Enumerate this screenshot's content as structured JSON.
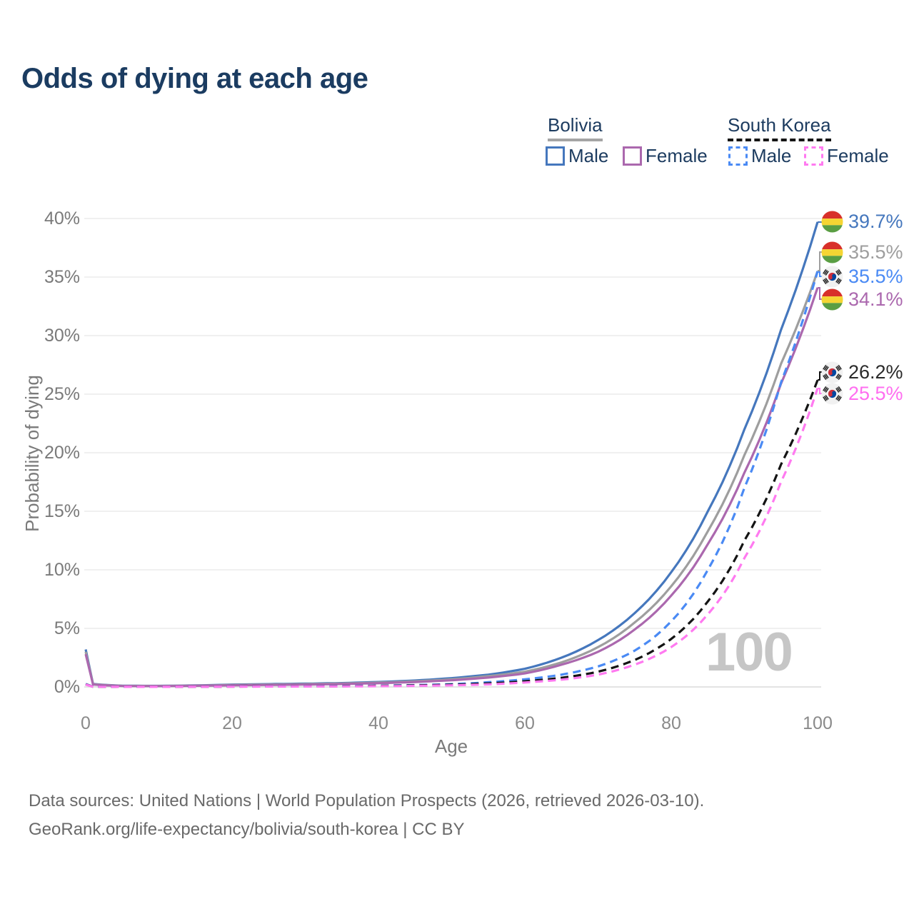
{
  "title": "Odds of dying at each age",
  "legend": {
    "groups": [
      {
        "label": "Bolivia",
        "line_style": "solid",
        "items": [
          {
            "label": "Male"
          },
          {
            "label": "Female"
          }
        ]
      },
      {
        "label": "South Korea",
        "line_style": "dashed",
        "items": [
          {
            "label": "Male"
          },
          {
            "label": "Female"
          }
        ]
      }
    ]
  },
  "axes": {
    "x_label": "Age",
    "y_label": "Probability of dying",
    "x_ticks": [
      "0",
      "20",
      "40",
      "60",
      "80",
      "100"
    ],
    "y_ticks": [
      "0%",
      "5%",
      "10%",
      "15%",
      "20%",
      "25%",
      "30%",
      "35%",
      "40%"
    ]
  },
  "watermark_year": "100",
  "end_labels": [
    {
      "value": "39.7%",
      "flag": "bolivia-flag-icon",
      "series": "bolivia_male"
    },
    {
      "value": "35.5%",
      "flag": "bolivia-flag-icon",
      "series": "bolivia_both"
    },
    {
      "value": "35.5%",
      "flag": "south-korea-flag-icon",
      "series": "south_korea_male"
    },
    {
      "value": "34.1%",
      "flag": "bolivia-flag-icon",
      "series": "bolivia_female"
    },
    {
      "value": "26.2%",
      "flag": "south-korea-flag-icon",
      "series": "south_korea_both"
    },
    {
      "value": "25.5%",
      "flag": "south-korea-flag-icon",
      "series": "south_korea_female"
    }
  ],
  "footer": {
    "line1": "Data sources: United Nations | World Population Prospects (2026, retrieved 2026-03-10).",
    "line2": "GeoRank.org/life-expectancy/bolivia/south-korea | CC BY"
  },
  "chart_data": {
    "type": "line",
    "title": "Odds of dying at each age",
    "xlabel": "Age",
    "ylabel": "Probability of dying",
    "xlim": [
      0,
      100
    ],
    "ylim_pct": [
      0,
      40
    ],
    "x_tick_values": [
      0,
      20,
      40,
      60,
      80,
      100
    ],
    "y_tick_values_pct": [
      0,
      5,
      10,
      15,
      20,
      25,
      30,
      35,
      40
    ],
    "grid": "horizontal",
    "legend_position": "top-right",
    "ages": [
      0,
      1,
      5,
      10,
      15,
      20,
      25,
      30,
      35,
      40,
      45,
      50,
      55,
      60,
      65,
      70,
      75,
      80,
      85,
      90,
      95,
      100
    ],
    "series": [
      {
        "id": "bolivia_male",
        "name": "Bolivia Male",
        "country": "Bolivia",
        "sex": "Male",
        "line": "solid",
        "color": "#4577bd",
        "end_value_pct": 39.7,
        "values": [
          3.2,
          0.25,
          0.1,
          0.09,
          0.13,
          0.2,
          0.24,
          0.28,
          0.33,
          0.42,
          0.55,
          0.75,
          1.05,
          1.55,
          2.5,
          4.0,
          6.3,
          9.8,
          15.0,
          22.0,
          30.5,
          39.7
        ]
      },
      {
        "id": "bolivia_both",
        "name": "Bolivia Both sexes",
        "country": "Bolivia",
        "sex": "Both",
        "line": "solid",
        "color": "#9e9e9e",
        "end_value_pct": 35.5,
        "values": [
          3.0,
          0.23,
          0.09,
          0.08,
          0.11,
          0.17,
          0.2,
          0.24,
          0.29,
          0.37,
          0.48,
          0.65,
          0.92,
          1.3,
          2.1,
          3.4,
          5.5,
          8.6,
          13.3,
          19.8,
          27.6,
          35.5
        ]
      },
      {
        "id": "bolivia_female",
        "name": "Bolivia Female",
        "country": "Bolivia",
        "sex": "Female",
        "line": "solid",
        "color": "#ab68ae",
        "end_value_pct": 34.1,
        "values": [
          2.8,
          0.21,
          0.08,
          0.07,
          0.1,
          0.14,
          0.17,
          0.2,
          0.25,
          0.32,
          0.42,
          0.57,
          0.8,
          1.15,
          1.9,
          3.0,
          4.9,
          7.8,
          12.2,
          18.3,
          25.9,
          34.1
        ]
      },
      {
        "id": "south_korea_male",
        "name": "South Korea Male",
        "country": "South Korea",
        "sex": "Male",
        "line": "dashed",
        "color": "#4a8af4",
        "end_value_pct": 35.5,
        "values": [
          0.25,
          0.02,
          0.01,
          0.01,
          0.02,
          0.04,
          0.05,
          0.06,
          0.08,
          0.11,
          0.16,
          0.24,
          0.4,
          0.65,
          1.05,
          1.75,
          3.1,
          5.6,
          10.0,
          17.0,
          26.0,
          35.5
        ]
      },
      {
        "id": "south_korea_both",
        "name": "South Korea Both sexes",
        "country": "South Korea",
        "sex": "Both",
        "line": "dashed",
        "color": "#141414",
        "end_value_pct": 26.2,
        "values": [
          0.22,
          0.018,
          0.009,
          0.009,
          0.015,
          0.03,
          0.04,
          0.05,
          0.06,
          0.09,
          0.13,
          0.19,
          0.3,
          0.48,
          0.78,
          1.3,
          2.3,
          4.1,
          7.3,
          12.5,
          19.0,
          26.2
        ]
      },
      {
        "id": "south_korea_female",
        "name": "South Korea Female",
        "country": "South Korea",
        "sex": "Female",
        "line": "dashed",
        "color": "#ff7af0",
        "end_value_pct": 25.5,
        "values": [
          0.2,
          0.016,
          0.008,
          0.008,
          0.012,
          0.02,
          0.03,
          0.035,
          0.045,
          0.065,
          0.095,
          0.14,
          0.22,
          0.38,
          0.62,
          1.05,
          1.9,
          3.4,
          6.2,
          11.0,
          17.5,
          25.5
        ]
      }
    ]
  }
}
